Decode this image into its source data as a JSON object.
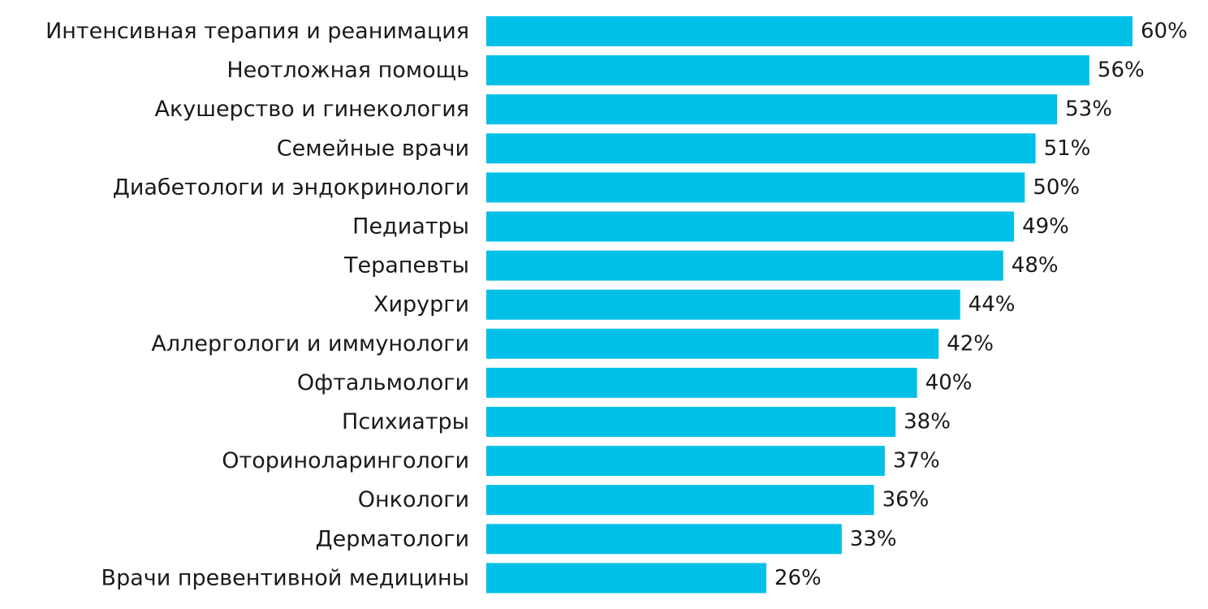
{
  "chart_data": {
    "type": "bar",
    "orientation": "horizontal",
    "categories": [
      "Интенсивная терапия и реанимация",
      "Неотложная помощь",
      "Акушерство и гинекология",
      "Семейные врачи",
      "Диабетологи и эндокринологи",
      "Педиатры",
      "Терапевты",
      "Хирурги",
      "Аллергологи и иммунологи",
      "Офтальмологи",
      "Психиатры",
      "Оториноларингологи",
      "Онкологи",
      "Дерматологи",
      "Врачи превентивной медицины"
    ],
    "values": [
      60,
      56,
      53,
      51,
      50,
      49,
      48,
      44,
      42,
      40,
      38,
      37,
      36,
      33,
      26
    ],
    "value_labels": [
      "60%",
      "56%",
      "53%",
      "51%",
      "50%",
      "49%",
      "48%",
      "44%",
      "42%",
      "40%",
      "38%",
      "37%",
      "36%",
      "33%",
      "26%"
    ],
    "unit": "%",
    "xlim": [
      0,
      60
    ],
    "grid": false,
    "legend": "none",
    "bar_color": "#00C0E8",
    "text_color": "#1a1a1a"
  }
}
